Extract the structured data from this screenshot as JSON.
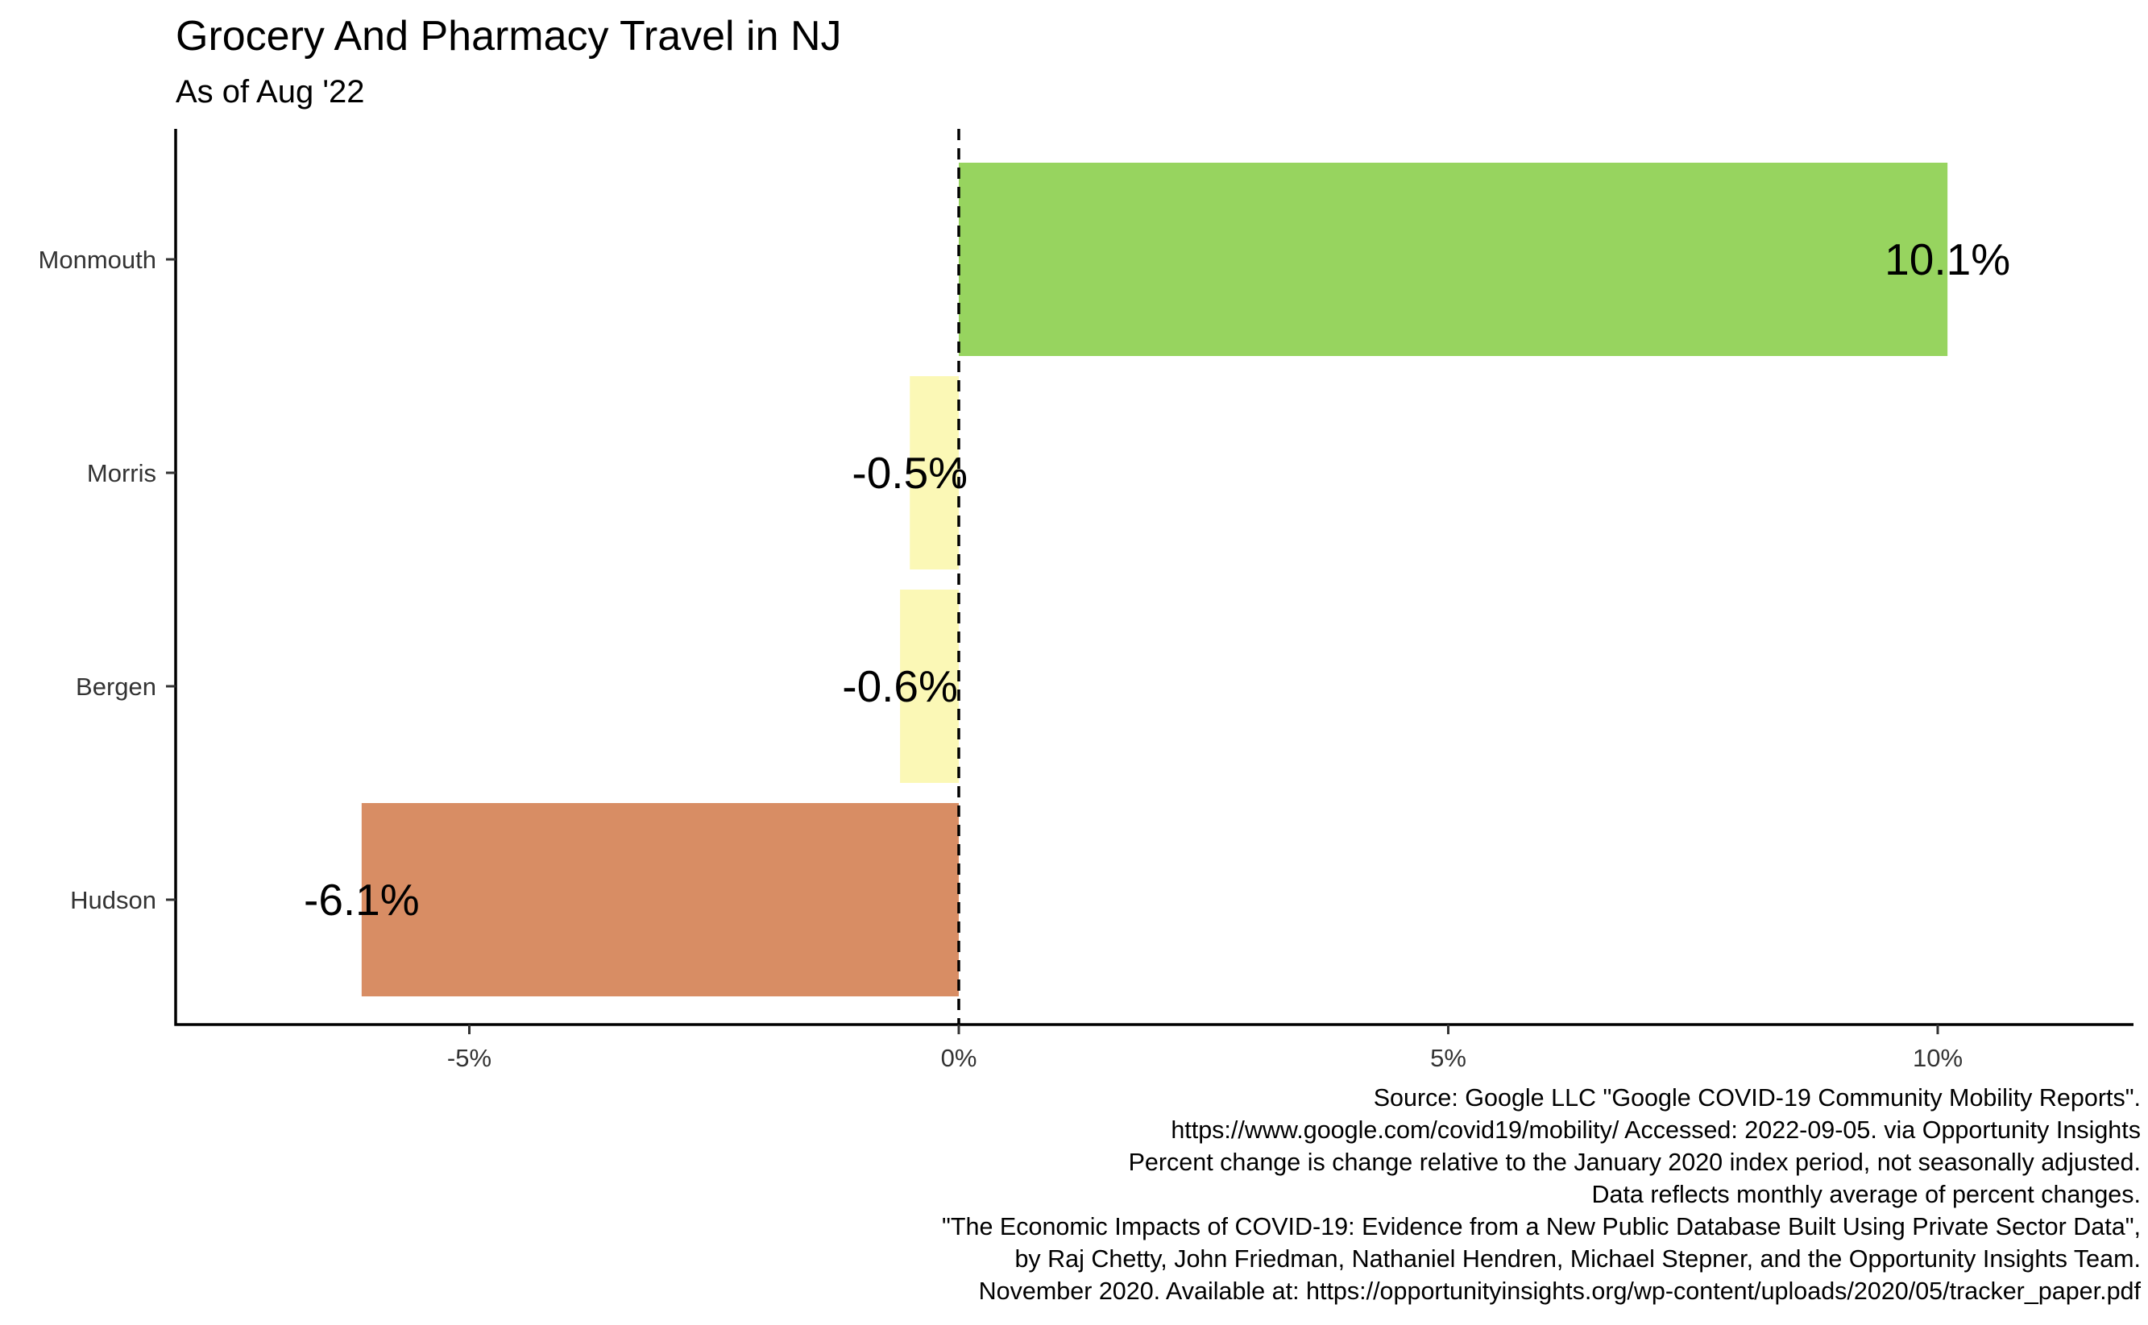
{
  "chart_data": {
    "type": "bar",
    "orientation": "horizontal",
    "title": "Grocery And Pharmacy Travel in NJ",
    "subtitle": "As of Aug '22",
    "categories": [
      "Monmouth",
      "Morris",
      "Bergen",
      "Hudson"
    ],
    "values": [
      10.1,
      -0.5,
      -0.6,
      -6.1
    ],
    "data_labels": [
      "10.1%",
      "-0.5%",
      "-0.6%",
      "-6.1%"
    ],
    "bar_colors": [
      "#97d45f",
      "#fbf8b6",
      "#fbf8b6",
      "#d88d64"
    ],
    "xlim": [
      -8,
      12
    ],
    "x_ticks": [
      -5,
      0,
      5,
      10
    ],
    "x_tick_labels": [
      "-5%",
      "0%",
      "5%",
      "10%"
    ],
    "reference_line": 0,
    "grid": false,
    "xlabel": "",
    "ylabel": ""
  },
  "caption_lines": [
    "Source: Google LLC \"Google COVID-19 Community Mobility Reports\".",
    "https://www.google.com/covid19/mobility/ Accessed: 2022-09-05. via Opportunity Insights",
    "Percent change is change relative to the January 2020 index period, not seasonally adjusted.",
    "Data reflects monthly average of percent changes.",
    "\"The Economic Impacts of COVID-19: Evidence from a New Public Database Built Using Private Sector Data\",",
    "by Raj Chetty, John Friedman, Nathaniel Hendren, Michael Stepner, and the Opportunity Insights Team.",
    "November 2020. Available at: https://opportunityinsights.org/wp-content/uploads/2020/05/tracker_paper.pdf"
  ]
}
